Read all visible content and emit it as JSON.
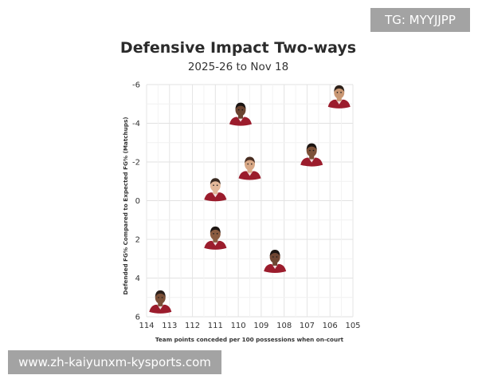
{
  "watermarks": {
    "top_right": "TG: MYYJJPP",
    "bottom_left": "www.zh-kaiyunxm-kysports.com"
  },
  "chart_data": {
    "type": "scatter",
    "title": "Defensive Impact Two-ways",
    "subtitle": "2025-26 to Nov 18",
    "xlabel": "Team points conceded per 100 possessions when on-court",
    "ylabel": "Defended FG% Compared to Expected FG% (Matchups)",
    "xlim": [
      114,
      105
    ],
    "ylim": [
      6,
      -6
    ],
    "x_reversed": true,
    "y_reversed": true,
    "grid": true,
    "x_ticks": [
      114,
      113,
      112,
      111,
      110,
      109,
      108,
      107,
      106,
      105
    ],
    "y_ticks": [
      -6,
      -4,
      -2,
      0,
      2,
      4,
      6
    ],
    "points": [
      {
        "x": 113.4,
        "y": 5.5,
        "skin": "#7a4f37",
        "hair": "#2a1f1a",
        "jersey": "#9b1c2c"
      },
      {
        "x": 111.0,
        "y": 2.2,
        "skin": "#8a5c40",
        "hair": "#1e1613",
        "jersey": "#9b1c2c"
      },
      {
        "x": 111.0,
        "y": -0.3,
        "skin": "#e3b89a",
        "hair": "#3a2a22",
        "jersey": "#9b1c2c"
      },
      {
        "x": 109.9,
        "y": -4.2,
        "skin": "#6a4330",
        "hair": "#1a1412",
        "jersey": "#9b1c2c"
      },
      {
        "x": 109.5,
        "y": -1.4,
        "skin": "#d8a886",
        "hair": "#4a2e22",
        "jersey": "#9b1c2c"
      },
      {
        "x": 108.4,
        "y": 3.4,
        "skin": "#6f4633",
        "hair": "#1c1512",
        "jersey": "#9b1c2c"
      },
      {
        "x": 106.8,
        "y": -2.1,
        "skin": "#7d5138",
        "hair": "#1b1411",
        "jersey": "#9b1c2c"
      },
      {
        "x": 105.6,
        "y": -5.1,
        "skin": "#c99773",
        "hair": "#2d2019",
        "jersey": "#9b1c2c"
      }
    ]
  }
}
